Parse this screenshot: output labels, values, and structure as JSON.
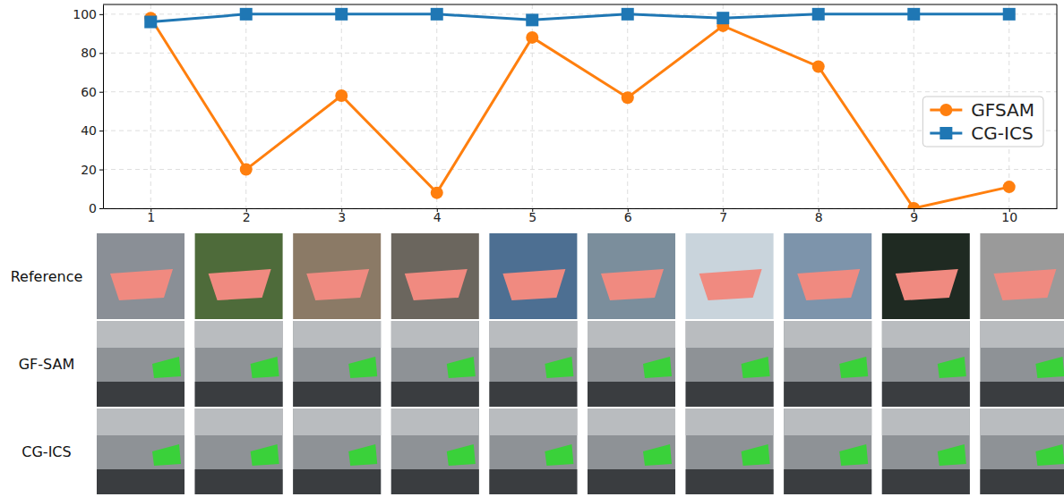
{
  "chart_data": {
    "type": "line",
    "x": [
      1,
      2,
      3,
      4,
      5,
      6,
      7,
      8,
      9,
      10
    ],
    "xlim": [
      0.5,
      10.5
    ],
    "xticks": [
      1,
      2,
      3,
      4,
      5,
      6,
      7,
      8,
      9,
      10
    ],
    "ylim": [
      0,
      105
    ],
    "yticks": [
      0,
      20,
      40,
      60,
      80,
      100
    ],
    "grid": true,
    "legend": "right",
    "series": [
      {
        "name": "GFSAM",
        "color": "#ff7f0e",
        "marker": "circle",
        "values": [
          98,
          20,
          58,
          8,
          88,
          57,
          94,
          73,
          0,
          11
        ]
      },
      {
        "name": "CG-ICS",
        "color": "#1f77b4",
        "marker": "square",
        "values": [
          96,
          100,
          100,
          100,
          97,
          100,
          98,
          100,
          100,
          100
        ]
      }
    ]
  },
  "image_rows": [
    "Reference",
    "GF-SAM",
    "CG-ICS"
  ]
}
